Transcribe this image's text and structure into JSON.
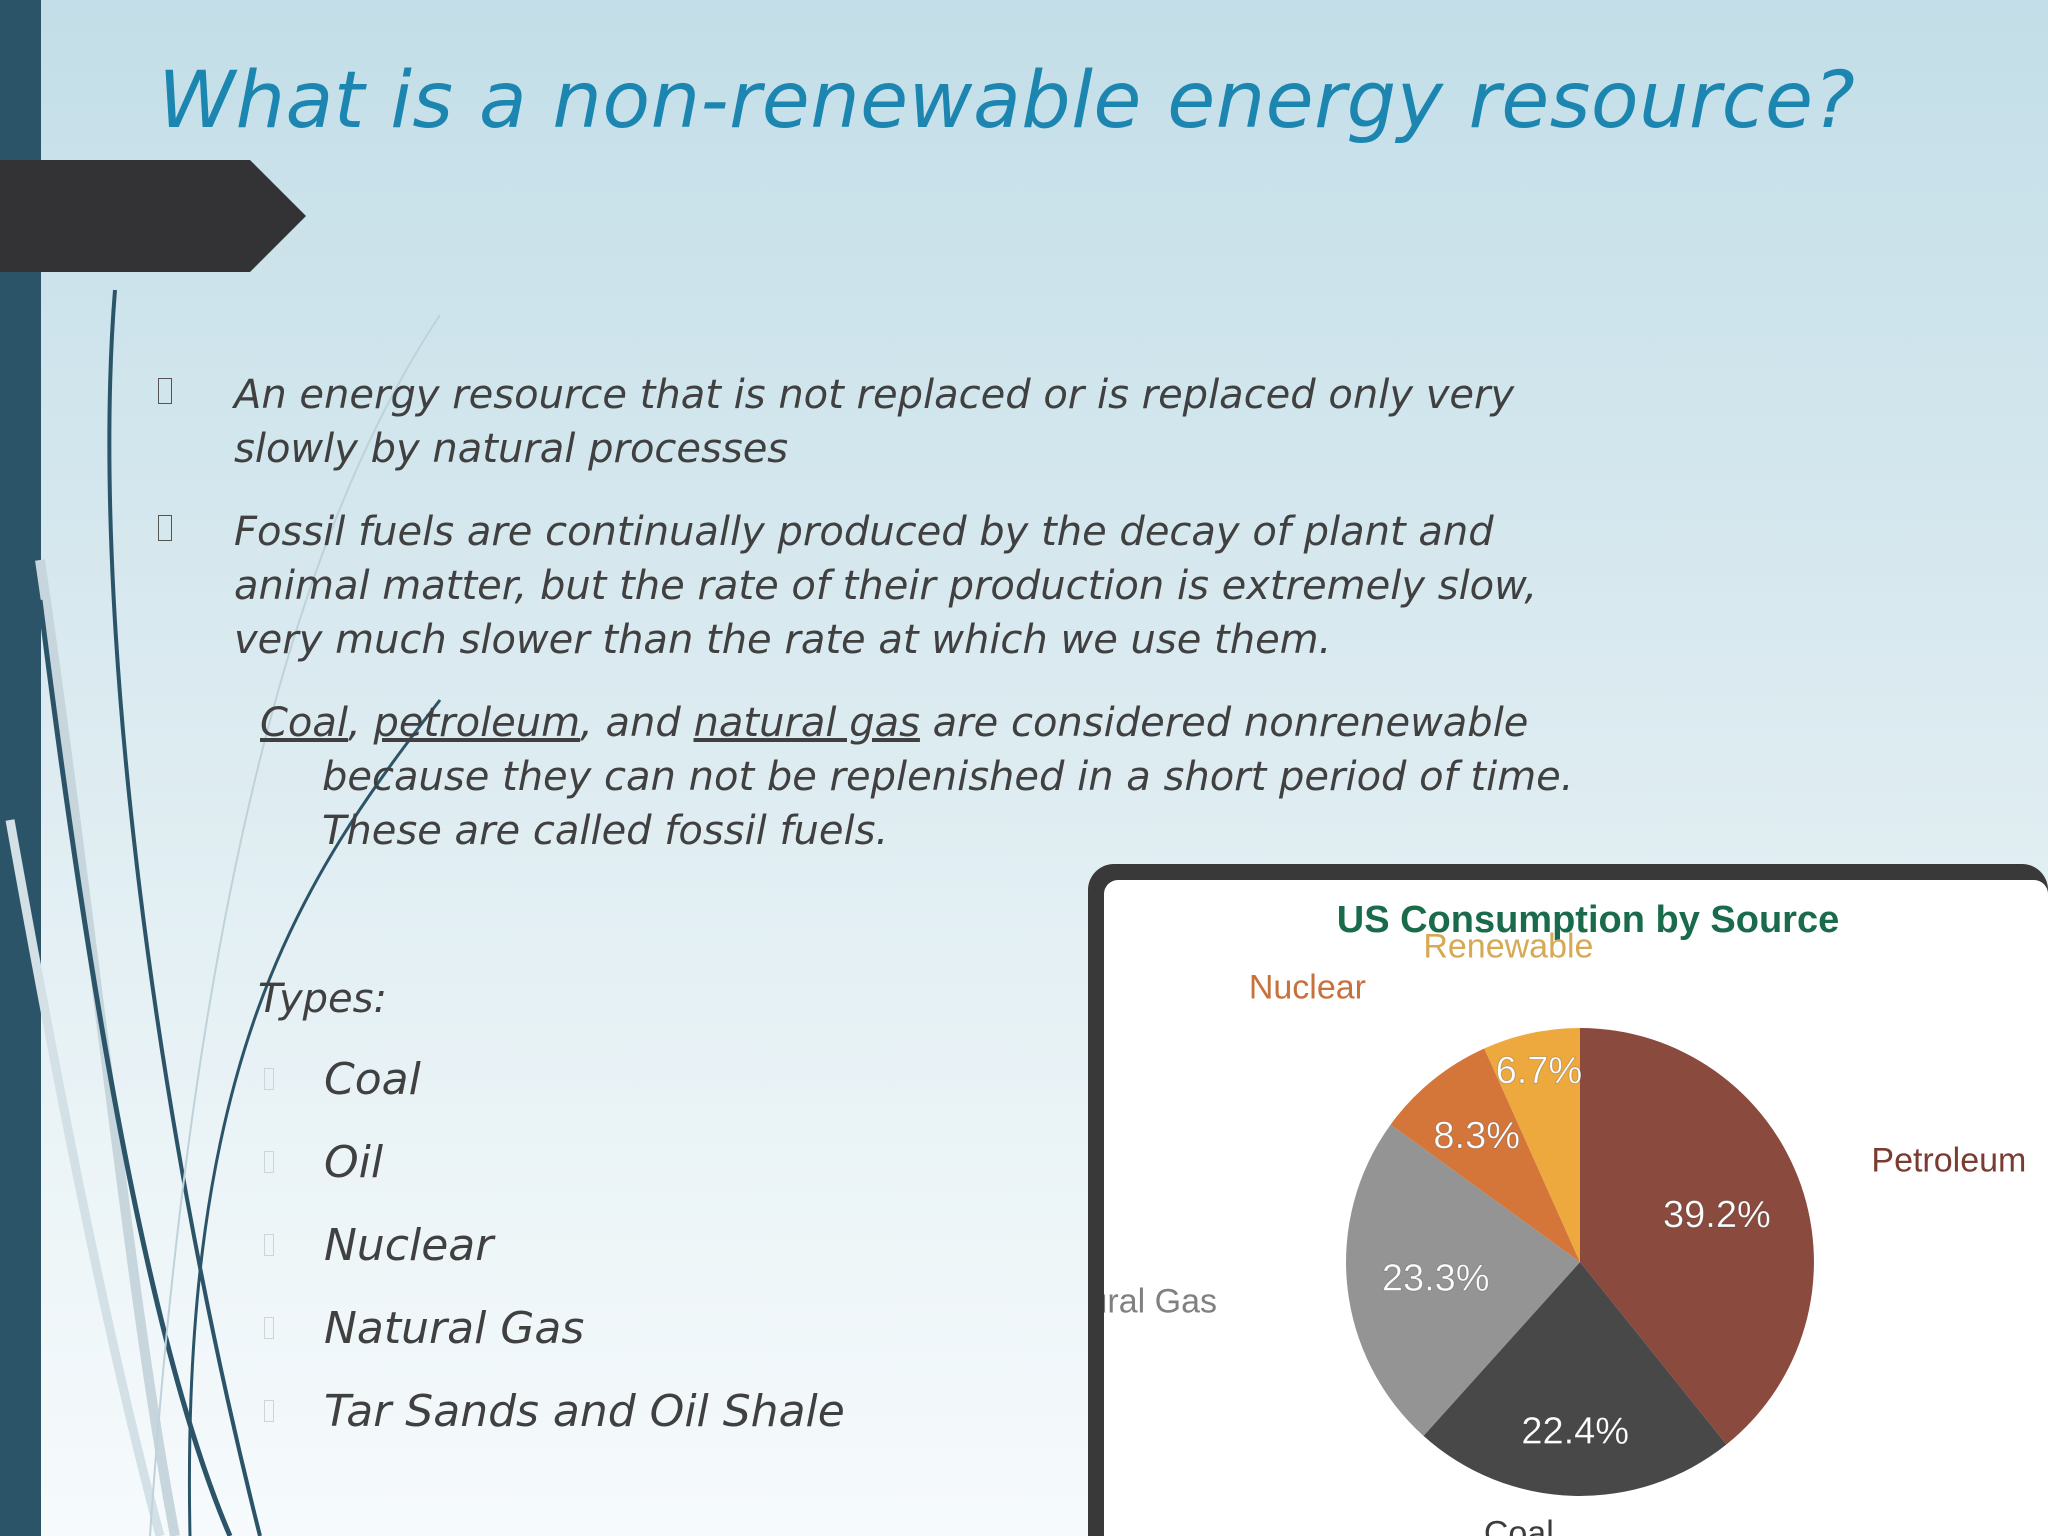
{
  "slide": {
    "title": "What is a non-renewable energy resource?",
    "bullets": [
      {
        "lines": [
          "An energy resource that is not replaced or is replaced only very",
          "slowly by natural processes"
        ]
      },
      {
        "lines": [
          "Fossil fuels are continually produced by the decay of plant and",
          "animal matter, but the rate of their production is extremely slow,",
          "very much slower than the rate at which we use them."
        ]
      }
    ],
    "fossil_paragraph": {
      "coal": "Coal",
      "sep1": ", ",
      "petroleum": "petroleum",
      "sep2": ", and ",
      "natural_gas": "natural gas",
      "line1_tail": " are considered nonrenewable",
      "line2": "because they can not be replenished in a short period of time.",
      "line3": "These are called fossil fuels."
    },
    "types_label": "Types:",
    "types": [
      "Coal",
      "Oil",
      "Nuclear",
      "Natural Gas",
      "Tar Sands and Oil Shale"
    ]
  },
  "colors": {
    "title": "#1c86b0",
    "left_bar": "#2b5468",
    "tab": "#333335",
    "chart_title": "#1a6b4c"
  },
  "chart_data": {
    "type": "pie",
    "title": "US Consumption by Source",
    "slices": [
      {
        "name": "Petroleum",
        "value": 39.2,
        "label": "39.2%",
        "color": "#8a4a3d",
        "label_color": "#7a3c30"
      },
      {
        "name": "Coal",
        "value": 22.4,
        "label": "22.4%",
        "color": "#484848",
        "label_color": "#3c3c3c"
      },
      {
        "name": "Natural Gas",
        "value": 23.3,
        "label": "23.3%",
        "color": "#949494",
        "label_color": "#808080"
      },
      {
        "name": "Nuclear",
        "value": 8.3,
        "label": "8.3%",
        "color": "#d4763a",
        "label_color": "#c8713c"
      },
      {
        "name": "Renewable",
        "value": 6.7,
        "label": "6.7%",
        "color": "#eda83e",
        "label_color": "#d6a955"
      }
    ]
  }
}
